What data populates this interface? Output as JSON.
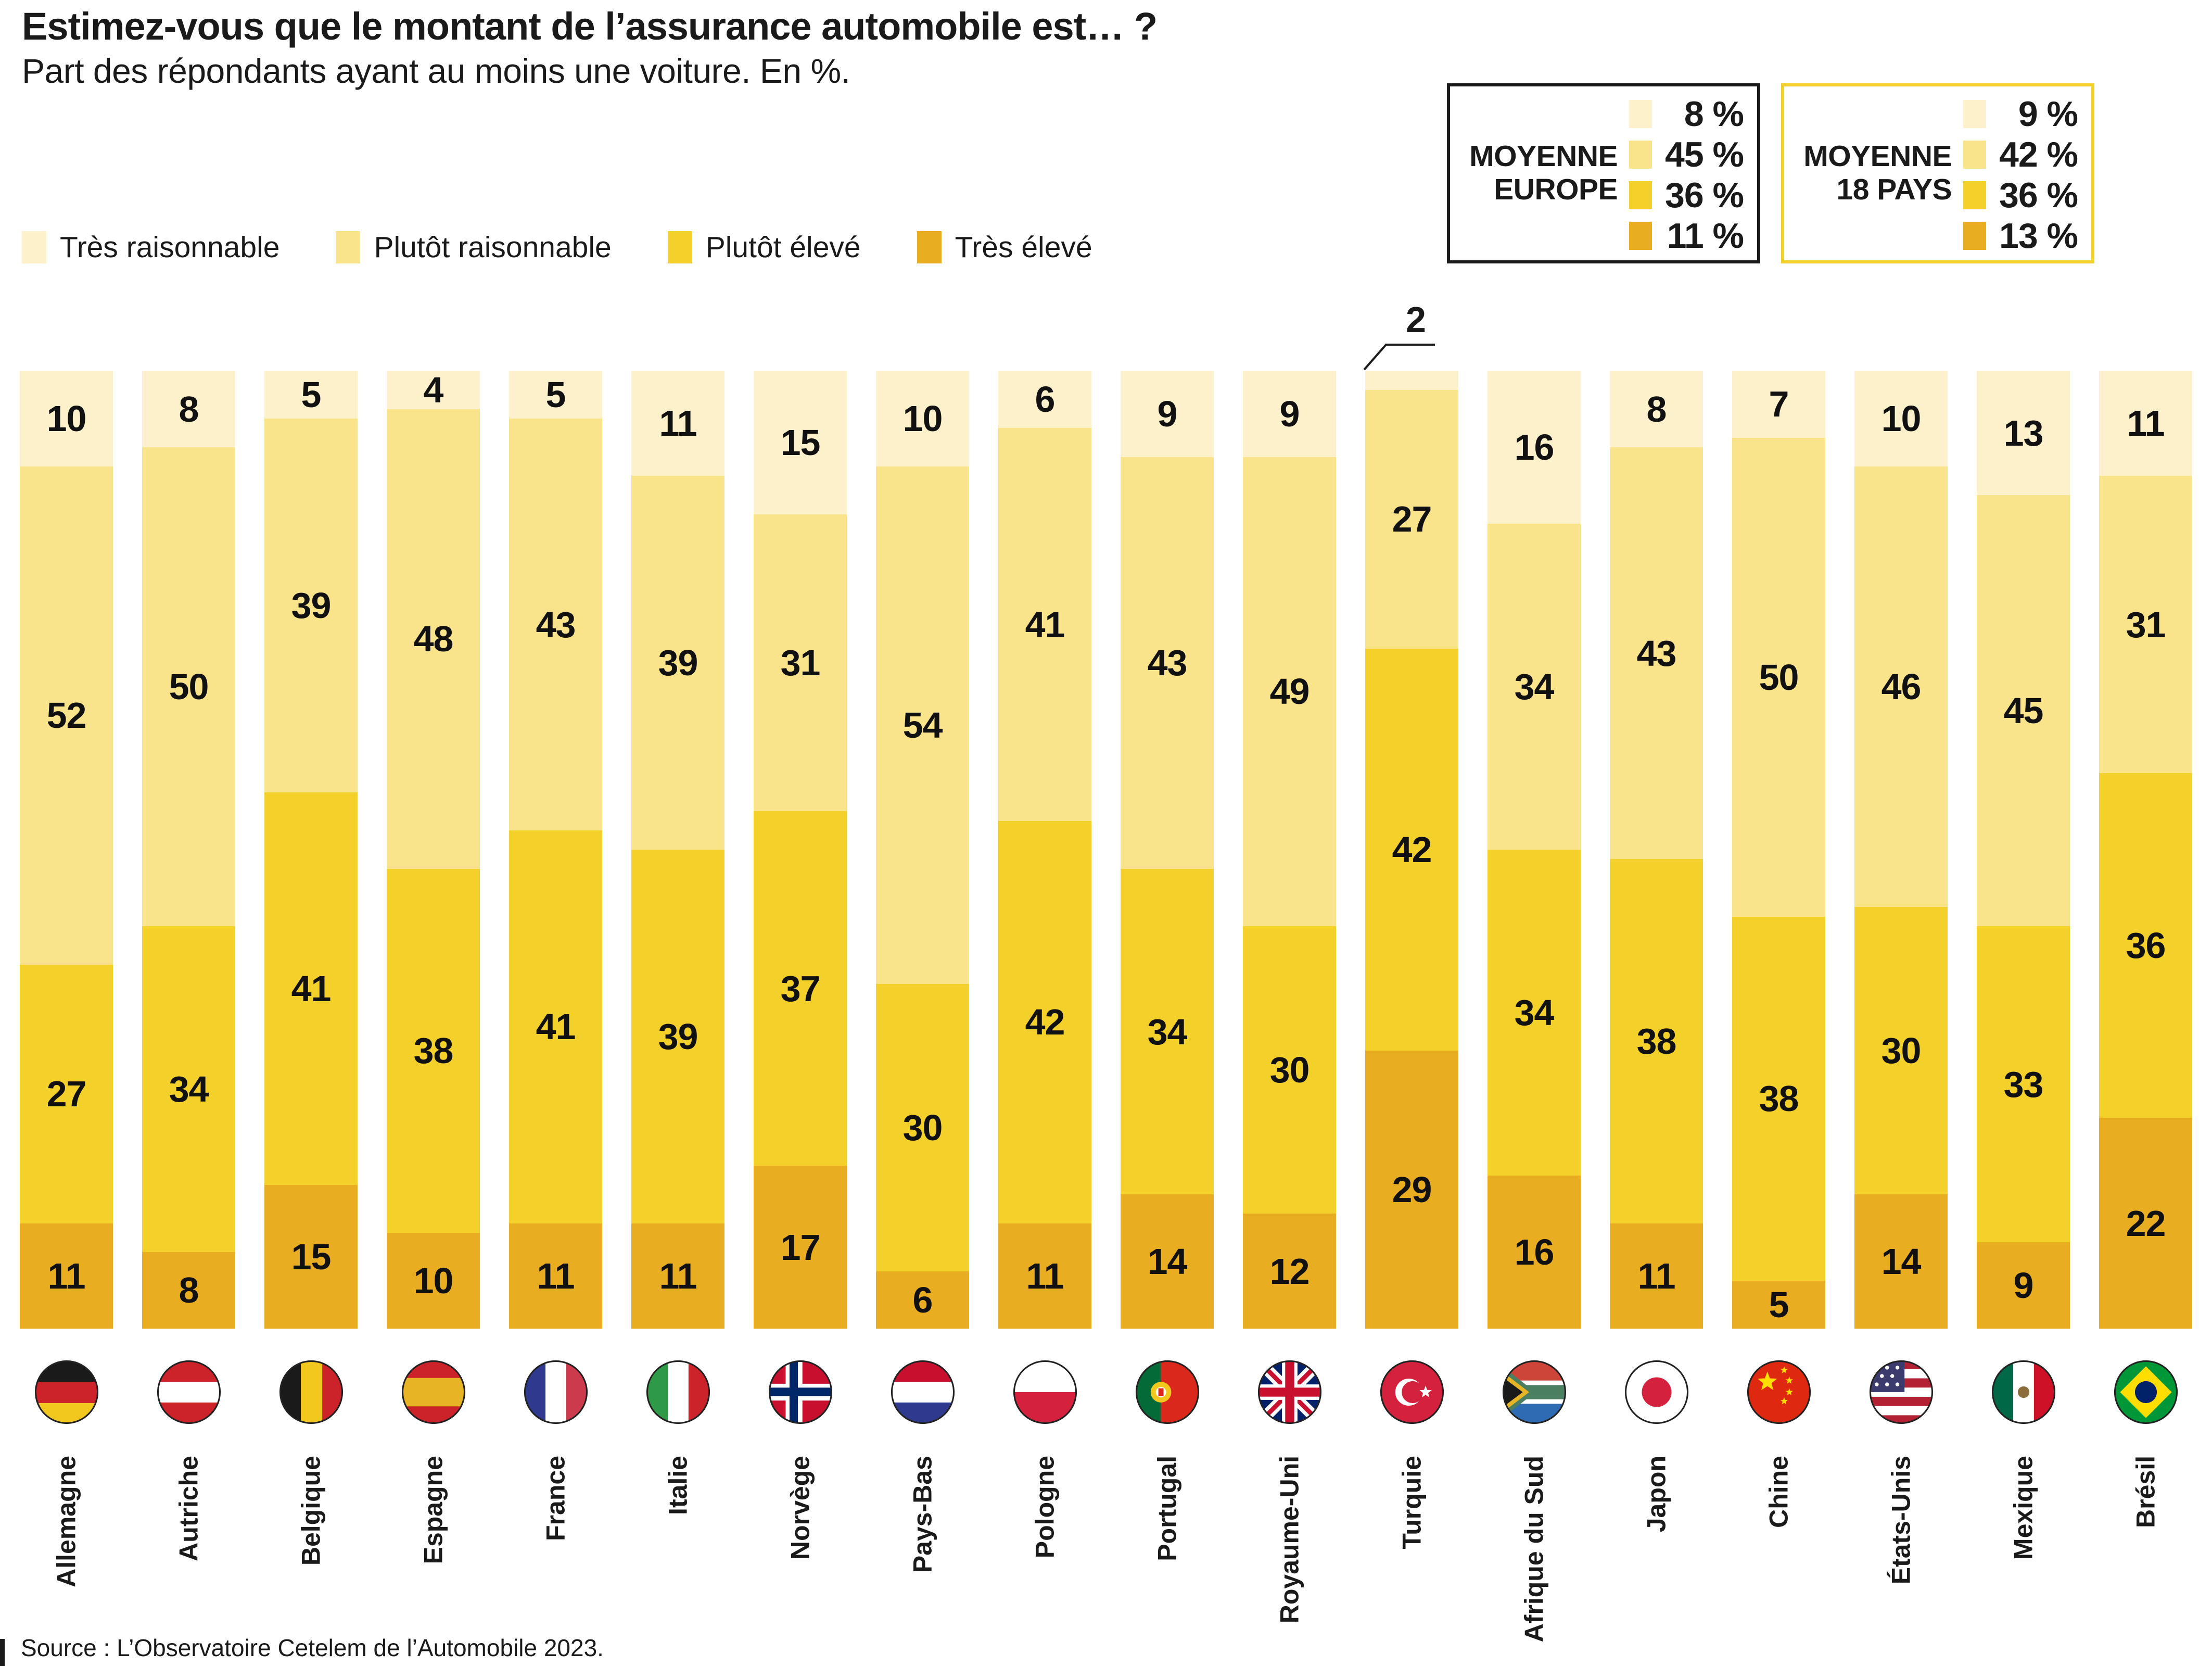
{
  "header": {
    "title": "Estimez-vous que le montant de l’assurance automobile est… ?",
    "subtitle": "Part des répondants ayant au moins une voiture. En %."
  },
  "legend": [
    {
      "label": "Très raisonnable",
      "color": "#FCF1CB"
    },
    {
      "label": "Plutôt raisonnable",
      "color": "#F9E38B"
    },
    {
      "label": "Plutôt élevé",
      "color": "#F4D02B"
    },
    {
      "label": "Très élevé",
      "color": "#E9AD21"
    }
  ],
  "averages": [
    {
      "name_lines": [
        "MOYENNE",
        "EUROPE"
      ],
      "border_color": "#1a1a1a",
      "values": [
        {
          "value": 8,
          "label": "8 %",
          "color": "#FCF1CB"
        },
        {
          "value": 45,
          "label": "45 %",
          "color": "#F9E38B"
        },
        {
          "value": 36,
          "label": "36 %",
          "color": "#F4D02B"
        },
        {
          "value": 11,
          "label": "11 %",
          "color": "#E9AD21"
        }
      ]
    },
    {
      "name_lines": [
        "MOYENNE",
        "18 PAYS"
      ],
      "border_color": "#F4D02B",
      "values": [
        {
          "value": 9,
          "label": "9 %",
          "color": "#FCF1CB"
        },
        {
          "value": 42,
          "label": "42 %",
          "color": "#F9E38B"
        },
        {
          "value": 36,
          "label": "36 %",
          "color": "#F4D02B"
        },
        {
          "value": 13,
          "label": "13 %",
          "color": "#E9AD21"
        }
      ]
    }
  ],
  "chart_data": {
    "type": "bar",
    "variant": "stacked-100",
    "unit": "%",
    "stack_total": 100,
    "grid": false,
    "legend_position": "top-left",
    "series_names": [
      "Très raisonnable",
      "Plutôt raisonnable",
      "Plutôt élevé",
      "Très élevé"
    ],
    "colors": [
      "#FCF1CB",
      "#F9E38B",
      "#F4D02B",
      "#E9AD21"
    ],
    "categories": [
      "Allemagne",
      "Autriche",
      "Belgique",
      "Espagne",
      "France",
      "Italie",
      "Norvège",
      "Pays-Bas",
      "Pologne",
      "Portugal",
      "Royaume-Uni",
      "Turquie",
      "Afrique du Sud",
      "Japon",
      "Chine",
      "États-Unis",
      "Mexique",
      "Brésil"
    ],
    "countries": [
      {
        "name": "Allemagne",
        "flag": "de",
        "values": [
          10,
          52,
          27,
          11
        ]
      },
      {
        "name": "Autriche",
        "flag": "at",
        "values": [
          8,
          50,
          34,
          8
        ]
      },
      {
        "name": "Belgique",
        "flag": "be",
        "values": [
          5,
          39,
          41,
          15
        ]
      },
      {
        "name": "Espagne",
        "flag": "es",
        "values": [
          4,
          48,
          38,
          10
        ]
      },
      {
        "name": "France",
        "flag": "fr",
        "values": [
          5,
          43,
          41,
          11
        ]
      },
      {
        "name": "Italie",
        "flag": "it",
        "values": [
          11,
          39,
          39,
          11
        ]
      },
      {
        "name": "Norvège",
        "flag": "no",
        "values": [
          15,
          31,
          37,
          17
        ]
      },
      {
        "name": "Pays-Bas",
        "flag": "nl",
        "values": [
          10,
          54,
          30,
          6
        ]
      },
      {
        "name": "Pologne",
        "flag": "pl",
        "values": [
          6,
          41,
          42,
          11
        ]
      },
      {
        "name": "Portugal",
        "flag": "pt",
        "values": [
          9,
          43,
          34,
          14
        ]
      },
      {
        "name": "Royaume-Uni",
        "flag": "gb",
        "values": [
          9,
          49,
          30,
          12
        ]
      },
      {
        "name": "Turquie",
        "flag": "tr",
        "values": [
          2,
          27,
          42,
          29
        ],
        "callout_first": true
      },
      {
        "name": "Afrique du Sud",
        "flag": "za",
        "values": [
          16,
          34,
          34,
          16
        ]
      },
      {
        "name": "Japon",
        "flag": "jp",
        "values": [
          8,
          43,
          38,
          11
        ]
      },
      {
        "name": "Chine",
        "flag": "cn",
        "values": [
          7,
          50,
          38,
          5
        ]
      },
      {
        "name": "États-Unis",
        "flag": "us",
        "values": [
          10,
          46,
          30,
          14
        ]
      },
      {
        "name": "Mexique",
        "flag": "mx",
        "values": [
          13,
          45,
          33,
          9
        ]
      },
      {
        "name": "Brésil",
        "flag": "br",
        "values": [
          11,
          31,
          36,
          22
        ]
      }
    ]
  },
  "source": "Source : L’Observatoire Cetelem de l’Automobile 2023."
}
